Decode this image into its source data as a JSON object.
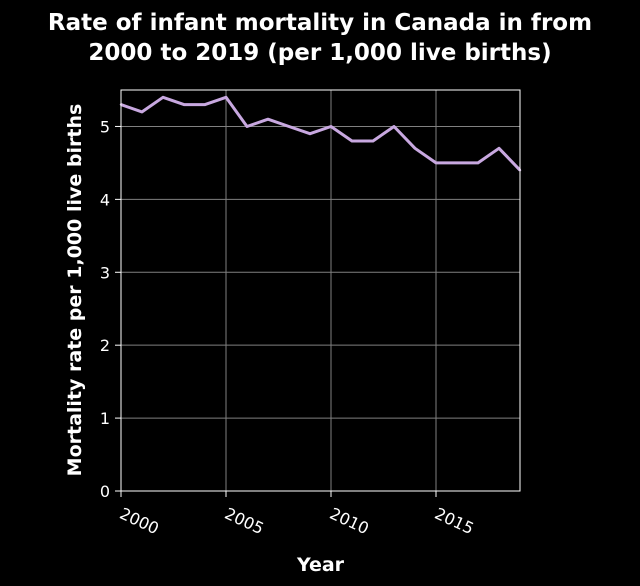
{
  "chart_data": {
    "type": "line",
    "title_lines": [
      "Rate of infant mortality in Canada in from",
      "2000 to 2019 (per 1,000 live births)"
    ],
    "xlabel": "Year",
    "ylabel": "Mortality rate per 1,000 live births",
    "xlim": [
      2000,
      2019
    ],
    "ylim": [
      0,
      5.5
    ],
    "x_ticks": [
      2000,
      2005,
      2010,
      2015
    ],
    "y_ticks": [
      0,
      1,
      2,
      3,
      4,
      5
    ],
    "grid": true,
    "series": [
      {
        "x": [
          2000,
          2001,
          2002,
          2003,
          2004,
          2005,
          2006,
          2007,
          2008,
          2009,
          2010,
          2011,
          2012,
          2013,
          2014,
          2015,
          2016,
          2017,
          2018,
          2019
        ],
        "values": [
          5.3,
          5.2,
          5.4,
          5.3,
          5.3,
          5.4,
          5.0,
          5.1,
          5.0,
          4.9,
          5.0,
          4.8,
          4.8,
          5.0,
          4.7,
          4.5,
          4.5,
          4.5,
          4.7,
          4.4
        ],
        "color": "#c8a8e0"
      }
    ],
    "colors": {
      "background": "#000000",
      "grid": "#808080",
      "text": "#ffffff"
    }
  }
}
